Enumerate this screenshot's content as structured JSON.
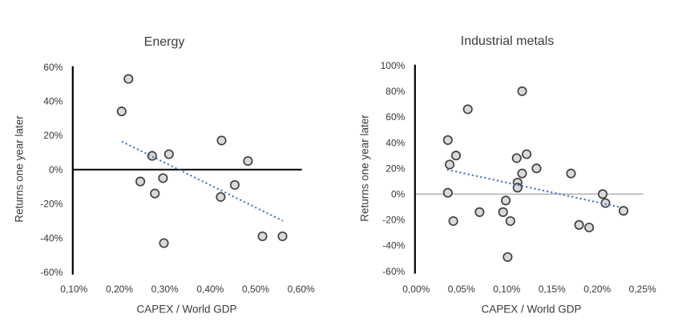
{
  "chart_data": [
    {
      "type": "scatter",
      "title": "Energy",
      "xlabel": "CAPEX / World GDP",
      "ylabel": "Returns one year later",
      "xlim": [
        0.1,
        0.6
      ],
      "ylim": [
        -60,
        60
      ],
      "xticks": [
        0.1,
        0.2,
        0.3,
        0.4,
        0.5,
        0.6
      ],
      "xtick_labels": [
        "0,10%",
        "0,20%",
        "0,30%",
        "0,40%",
        "0,50%",
        "0,60%"
      ],
      "yticks": [
        60,
        40,
        20,
        0,
        -20,
        -40,
        -60
      ],
      "ytick_labels": [
        "60%",
        "40%",
        "20%",
        "0%",
        "-20%",
        "-40%",
        "-60%"
      ],
      "grid": false,
      "legend": false,
      "points": [
        [
          0.22,
          53
        ],
        [
          0.205,
          34
        ],
        [
          0.272,
          8
        ],
        [
          0.309,
          9
        ],
        [
          0.246,
          -7
        ],
        [
          0.296,
          -5
        ],
        [
          0.278,
          -14
        ],
        [
          0.425,
          17
        ],
        [
          0.483,
          5
        ],
        [
          0.454,
          -9
        ],
        [
          0.423,
          -16
        ],
        [
          0.515,
          -39
        ],
        [
          0.559,
          -39
        ],
        [
          0.298,
          -43
        ]
      ],
      "trendline": {
        "start": [
          0.205,
          16.4
        ],
        "end": [
          0.56,
          -30
        ],
        "style": "dotted",
        "color": "#4472c4"
      },
      "zero_line": {
        "color": "#000000",
        "width": 2
      },
      "axis_color": "#000000",
      "marker": {
        "fill": "#d9d9d9",
        "stroke": "#404040"
      }
    },
    {
      "type": "scatter",
      "title": "Industrial metals",
      "xlabel": "CAPEX / World GDP",
      "ylabel": "Returns one year later",
      "xlim": [
        0.0,
        0.25
      ],
      "ylim": [
        -60,
        100
      ],
      "xticks": [
        0.0,
        0.05,
        0.1,
        0.15,
        0.2,
        0.25
      ],
      "xtick_labels": [
        "0,00%",
        "0,05%",
        "0,10%",
        "0,15%",
        "0,20%",
        "0,25%"
      ],
      "yticks": [
        100,
        80,
        60,
        40,
        20,
        0,
        -20,
        -40,
        -60
      ],
      "ytick_labels": [
        "100%",
        "80%",
        "60%",
        "40%",
        "20%",
        "0%",
        "-20%",
        "-40%",
        "-60%"
      ],
      "grid": false,
      "legend": false,
      "points": [
        [
          0.035,
          42
        ],
        [
          0.037,
          23
        ],
        [
          0.044,
          30
        ],
        [
          0.035,
          1
        ],
        [
          0.041,
          -21
        ],
        [
          0.057,
          66
        ],
        [
          0.07,
          -14
        ],
        [
          0.096,
          -14
        ],
        [
          0.099,
          -5
        ],
        [
          0.104,
          -21
        ],
        [
          0.101,
          -49
        ],
        [
          0.111,
          28
        ],
        [
          0.122,
          31
        ],
        [
          0.117,
          80
        ],
        [
          0.117,
          16
        ],
        [
          0.112,
          9
        ],
        [
          0.112,
          5
        ],
        [
          0.133,
          20
        ],
        [
          0.171,
          16
        ],
        [
          0.18,
          -24
        ],
        [
          0.191,
          -26
        ],
        [
          0.206,
          0
        ],
        [
          0.209,
          -7
        ],
        [
          0.229,
          -13
        ]
      ],
      "trendline": {
        "start": [
          0.034,
          19
        ],
        "end": [
          0.224,
          -10
        ],
        "style": "dotted",
        "color": "#4472c4"
      },
      "zero_line": {
        "color": "#ababab",
        "width": 1.4
      },
      "axis_color": "#000000",
      "marker": {
        "fill": "#d9d9d9",
        "stroke": "#404040"
      }
    }
  ]
}
